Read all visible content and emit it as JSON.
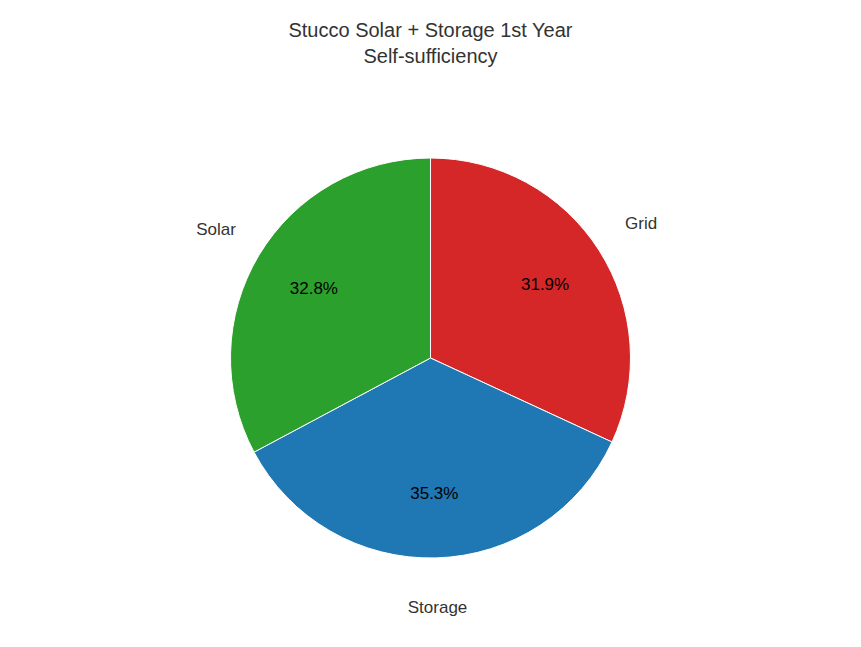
{
  "chart_data": {
    "type": "pie",
    "title": "Stucco Solar + Storage 1st Year\nSelf-sufficiency",
    "categories": [
      "Grid",
      "Storage",
      "Solar"
    ],
    "values": [
      31.9,
      35.3,
      32.8
    ],
    "value_labels": [
      "31.9%",
      "35.3%",
      "32.8%"
    ],
    "colors": [
      "#d62728",
      "#1f77b4",
      "#2ca02c"
    ],
    "data_labels": true
  }
}
